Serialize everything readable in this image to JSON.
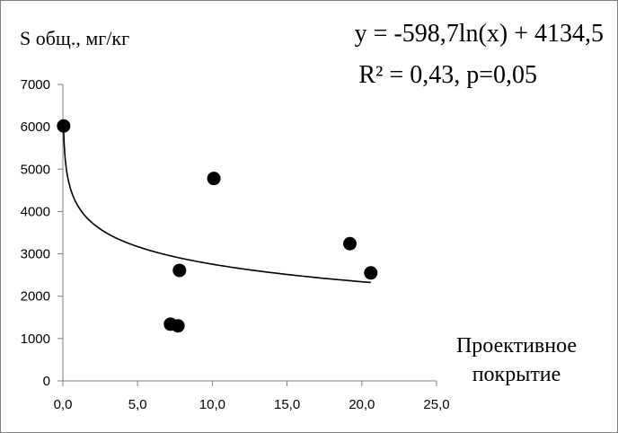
{
  "chart_data": {
    "type": "scatter",
    "ylabel": "S общ., мг/кг",
    "xlabel_line1": "Проективное",
    "xlabel_line2": "покрытие",
    "equation": "y = -598,7ln(x) + 4134,5",
    "r2_text": "R² = 0,43, p=0,05",
    "xlim": [
      0,
      25
    ],
    "ylim": [
      0,
      7000
    ],
    "x_ticks": [
      "0,0",
      "5,0",
      "10,0",
      "15,0",
      "20,0",
      "25,0"
    ],
    "y_ticks": [
      "0",
      "1000",
      "2000",
      "3000",
      "4000",
      "5000",
      "6000",
      "7000"
    ],
    "points": [
      {
        "x": 0.05,
        "y": 6020
      },
      {
        "x": 7.2,
        "y": 1340
      },
      {
        "x": 7.7,
        "y": 1300
      },
      {
        "x": 7.8,
        "y": 2610
      },
      {
        "x": 10.1,
        "y": 4780
      },
      {
        "x": 19.2,
        "y": 3240
      },
      {
        "x": 20.6,
        "y": 2550
      }
    ],
    "trendline": {
      "type": "logarithmic",
      "a": -598.7,
      "b": 4134.5,
      "x_from": 0.05,
      "x_to": 20.6
    },
    "grid": false,
    "legend": "none"
  },
  "colors": {
    "marker": "#000000",
    "trend": "#000000",
    "axis": "#7f7f7f",
    "border": "#7f7f7f"
  }
}
